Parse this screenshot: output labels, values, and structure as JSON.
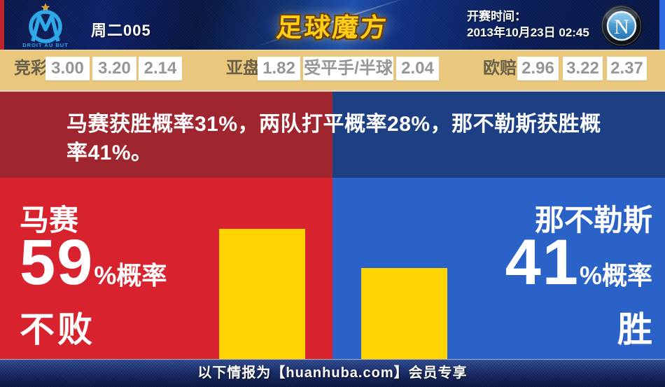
{
  "header": {
    "match_label": "周二005",
    "brand": "足球魔方",
    "kickoff_label": "开赛时间：",
    "kickoff_time": "2013年10月23日 02:45",
    "home_crest_motto": "DROIT AU BUT",
    "away_crest_letter": "N"
  },
  "odds_bar": {
    "jingcai": {
      "label": "竞彩",
      "win": "3.00",
      "draw": "3.20",
      "lose": "2.14"
    },
    "yapan": {
      "label": "亚盘",
      "home": "1.82",
      "handicap": "受平手/半球",
      "away": "2.04"
    },
    "oupei": {
      "label": "欧赔",
      "win": "2.96",
      "draw": "3.22",
      "lose": "2.37"
    }
  },
  "analysis": {
    "summary": "马赛获胜概率31%，两队打平概率28%，那不勒斯获胜概率41%。",
    "probabilities": {
      "home_win_pct": 31,
      "draw_pct": 28,
      "away_win_pct": 41,
      "home_unbeaten_pct": 59
    },
    "home": {
      "team": "马赛",
      "value": "59",
      "suffix": "%概率",
      "outcome": "不败"
    },
    "away": {
      "team": "那不勒斯",
      "value": "41",
      "suffix": "%概率",
      "outcome": "胜"
    }
  },
  "footer": {
    "text": "以下情报为【huanhuba.com】会员专享"
  },
  "colors": {
    "home_red": "#d8232e",
    "home_dark_red": "#9f262e",
    "away_blue": "#2b62c8",
    "away_dark_blue": "#1d4084",
    "bar_yellow": "#ffd400",
    "odds_tan": "#e9c87d",
    "header_navy": "#0c2268",
    "brand_gold": "#ffcf17",
    "om_blue": "#2fa8e8"
  }
}
